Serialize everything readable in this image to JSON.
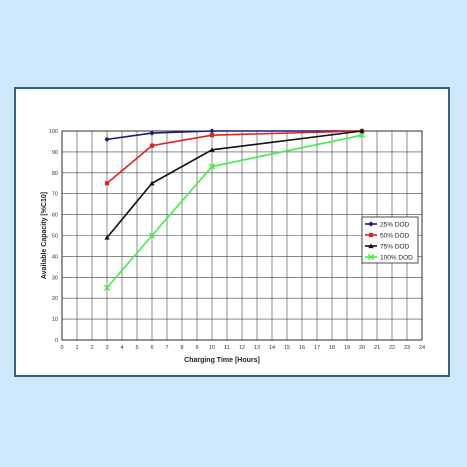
{
  "chart_data": {
    "type": "line",
    "title": "",
    "xlabel": "Charging Time [Hours]",
    "ylabel": "Available Capacity [%C10]",
    "xlim": [
      0,
      24
    ],
    "ylim": [
      0,
      100
    ],
    "xticks": [
      0,
      1,
      2,
      3,
      4,
      5,
      6,
      7,
      8,
      9,
      10,
      11,
      12,
      13,
      14,
      15,
      16,
      17,
      18,
      19,
      20,
      21,
      22,
      23,
      24
    ],
    "yticks": [
      0,
      10,
      20,
      30,
      40,
      50,
      60,
      70,
      80,
      90,
      100
    ],
    "grid": true,
    "legend_position": "right",
    "series": [
      {
        "name": "25% DOD",
        "color": "#1a1a80",
        "marker": "diamond",
        "x": [
          3,
          6,
          10,
          20
        ],
        "y": [
          96,
          99,
          100,
          100
        ]
      },
      {
        "name": "50% DOD",
        "color": "#e02020",
        "marker": "square",
        "x": [
          3,
          6,
          10,
          20
        ],
        "y": [
          75,
          93,
          98,
          100
        ]
      },
      {
        "name": "75% DOD",
        "color": "#111111",
        "marker": "triangle",
        "x": [
          3,
          6,
          10,
          20
        ],
        "y": [
          49,
          75,
          91,
          100
        ]
      },
      {
        "name": "100% DOD",
        "color": "#44ee44",
        "marker": "x",
        "x": [
          3,
          6,
          10,
          20
        ],
        "y": [
          25,
          50,
          83,
          98
        ]
      }
    ]
  }
}
